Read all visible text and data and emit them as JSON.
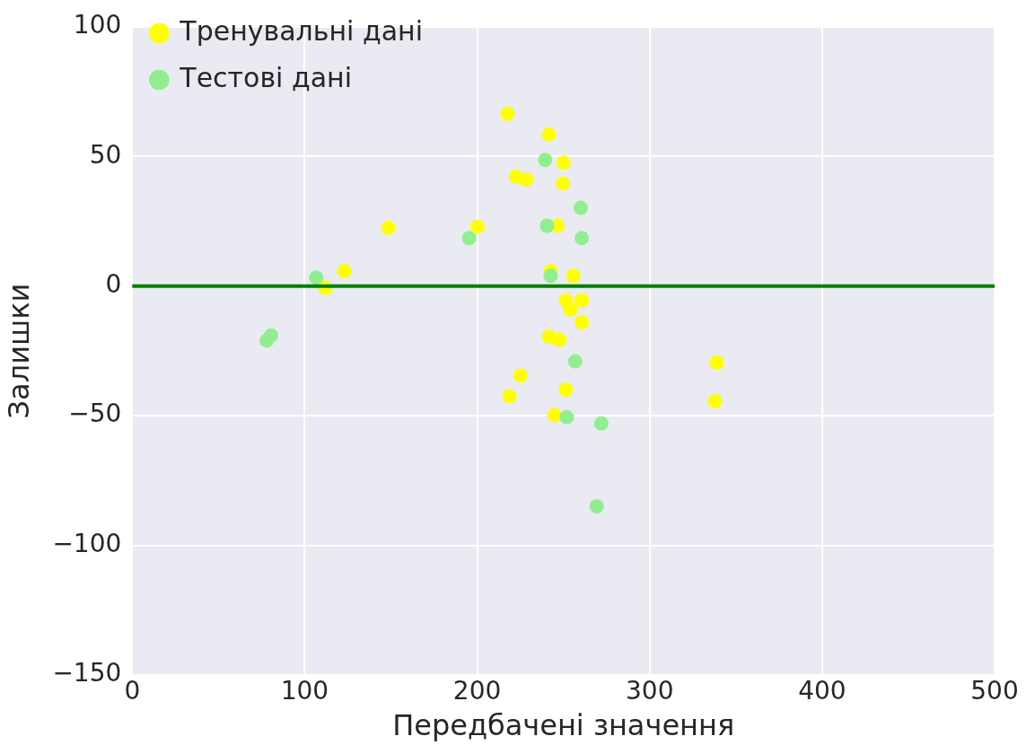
{
  "chart_data": {
    "type": "scatter",
    "xlabel": "Передбачені значення",
    "ylabel": "Залишки",
    "xlim": [
      0,
      500
    ],
    "xticks": [
      0,
      100,
      200,
      300,
      400,
      500
    ],
    "ylim": [
      -150,
      100
    ],
    "yticks": [
      -150,
      -100,
      -50,
      0,
      50,
      100
    ],
    "grid": true,
    "legend": "top left",
    "marker": "circle",
    "ref_lines": [
      {
        "axis": "y",
        "value": 0,
        "color": "#008000",
        "line_style": "solid"
      }
    ],
    "series": [
      {
        "name": "Тренувальні дані",
        "color": "#ffff00",
        "x": [
          217.6,
          241.6,
          250,
          222.5,
          228.5,
          249.7,
          200.2,
          246.5,
          242.6,
          255.7,
          148.5,
          123,
          112,
          251.4,
          260.6,
          254,
          260.6,
          241.6,
          247.6,
          225,
          218.7,
          251.4,
          244.8,
          339,
          337.9
        ],
        "values": [
          66.5,
          58.5,
          47.6,
          42.2,
          41.1,
          39.6,
          22.9,
          23.3,
          5.8,
          4,
          22.5,
          5.8,
          -0.7,
          -5.5,
          -5.5,
          -9,
          -14,
          -19.5,
          -20.7,
          -34.5,
          -42.5,
          -40,
          -49.8,
          -29.5,
          -44.4
        ]
      },
      {
        "name": "Тестові дані",
        "color": "#90ee90",
        "x": [
          239.4,
          260,
          240.5,
          260.6,
          195.3,
          242.6,
          106.7,
          78,
          80.5,
          256.8,
          251.9,
          272,
          269.3
        ],
        "values": [
          48.7,
          30.2,
          23.3,
          18.5,
          18.5,
          4,
          3.3,
          -21,
          -19,
          -29,
          -50.5,
          -53,
          -85
        ]
      }
    ]
  }
}
